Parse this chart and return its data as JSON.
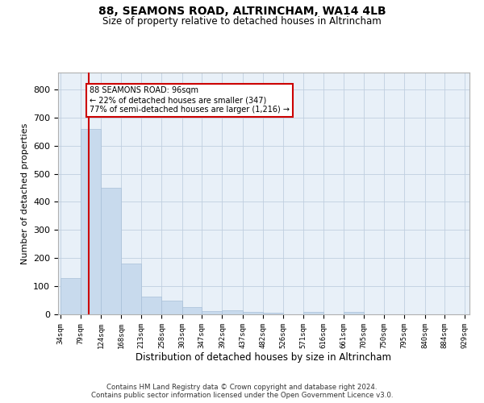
{
  "title": "88, SEAMONS ROAD, ALTRINCHAM, WA14 4LB",
  "subtitle": "Size of property relative to detached houses in Altrincham",
  "xlabel": "Distribution of detached houses by size in Altrincham",
  "ylabel": "Number of detached properties",
  "bar_edges": [
    34,
    79,
    124,
    168,
    213,
    258,
    303,
    347,
    392,
    437,
    482,
    526,
    571,
    616,
    661,
    705,
    750,
    795,
    840,
    884,
    929
  ],
  "bar_heights": [
    128,
    660,
    450,
    182,
    63,
    50,
    26,
    11,
    14,
    10,
    7,
    0,
    8,
    0,
    8,
    0,
    0,
    0,
    0,
    0
  ],
  "bar_color": "#c8daed",
  "bar_edge_color": "#a8c0d8",
  "property_size": 96,
  "property_line_color": "#cc0000",
  "annotation_text": "88 SEAMONS ROAD: 96sqm\n← 22% of detached houses are smaller (347)\n77% of semi-detached houses are larger (1,216) →",
  "annotation_box_color": "#ffffff",
  "annotation_box_edge_color": "#cc0000",
  "ylim": [
    0,
    860
  ],
  "yticks": [
    0,
    100,
    200,
    300,
    400,
    500,
    600,
    700,
    800
  ],
  "footer_line1": "Contains HM Land Registry data © Crown copyright and database right 2024.",
  "footer_line2": "Contains public sector information licensed under the Open Government Licence v3.0.",
  "background_color": "#ffffff",
  "grid_color": "#c0cfe0",
  "axis_bg_color": "#e8f0f8"
}
